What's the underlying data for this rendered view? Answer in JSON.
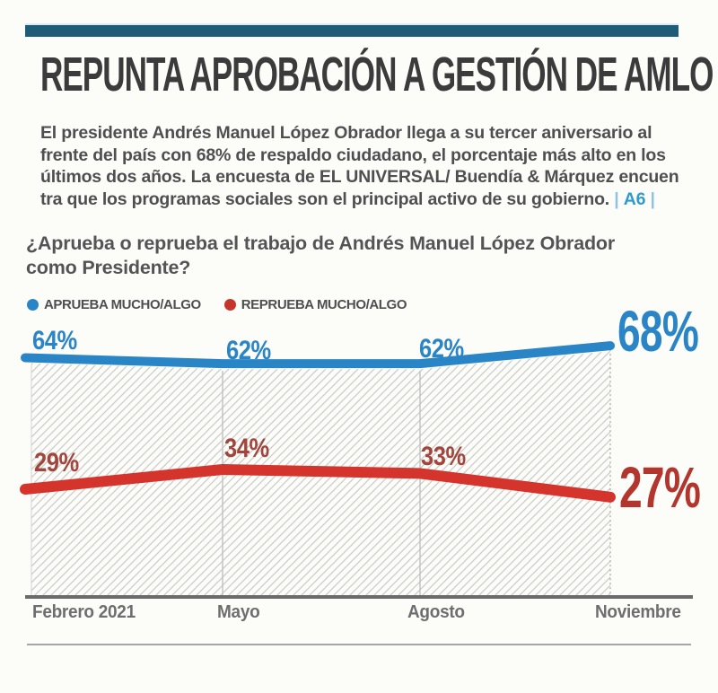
{
  "header": {
    "accent_color": "#1f5c78",
    "title": "REPUNTA APROBACIÓN A GESTIÓN DE AMLO",
    "summary_lines": [
      "El presidente Andrés Manuel López Obrador llega a su tercer aniversario al",
      "frente del país con 68% de respaldo ciudadano, el porcentaje más alto en los",
      "últimos dos años. La encuesta de EL UNIVERSAL/ Buendía & Márquez encuen",
      "tra que los programas sociales son el principal activo de su gobierno."
    ],
    "ref_pipe": "|",
    "page_ref": "A6"
  },
  "question": {
    "lines": [
      "¿Aprueba o reprueba el trabajo de Andrés Manuel López Obrador",
      "como Presidente?"
    ]
  },
  "legend": [
    {
      "label": "APRUEBA MUCHO/ALGO",
      "color": "#2a85c7"
    },
    {
      "label": "REPRUEBA MUCHO/ALGO",
      "color": "#c5352c"
    }
  ],
  "chart_data": {
    "type": "line",
    "title": "¿Aprueba o reprueba el trabajo de Andrés Manuel López Obrador como Presidente?",
    "categories": [
      "Febrero 2021",
      "Mayo",
      "Agosto",
      "Noviembre"
    ],
    "series": [
      {
        "name": "APRUEBA MUCHO/ALGO",
        "color": "#2a85c7",
        "values": [
          64,
          62,
          62,
          68
        ],
        "labels": [
          "64%",
          "62%",
          "62%",
          "68%"
        ]
      },
      {
        "name": "REPRUEBA MUCHO/ALGO",
        "color": "#d5342c",
        "values": [
          29,
          34,
          33,
          27
        ],
        "labels": [
          "29%",
          "34%",
          "33%",
          "27%"
        ]
      }
    ],
    "ylim": [
      0,
      100
    ],
    "grid": "vertical-category-lines",
    "area_fill": "diagonal-hatch-under-approve-line",
    "legend_position": "top-left"
  }
}
